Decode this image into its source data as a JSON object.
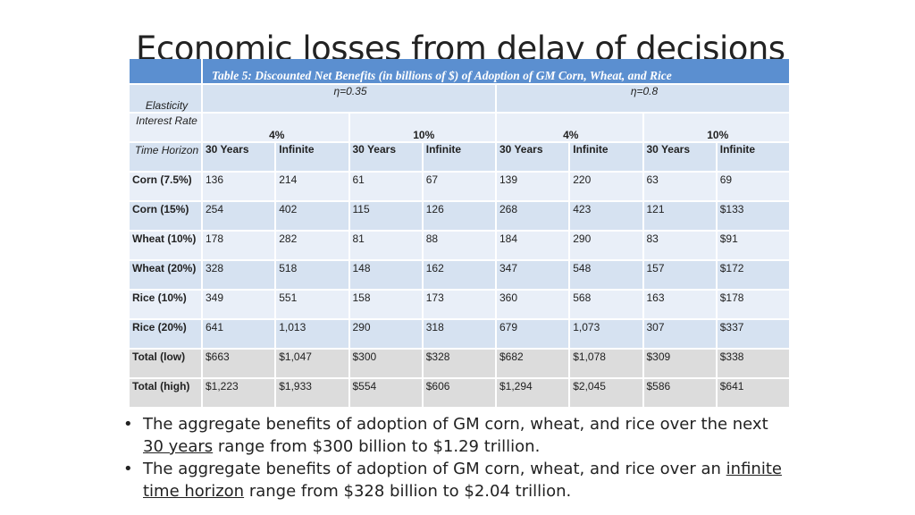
{
  "title": "Economic losses from delay of decisions",
  "table": {
    "caption": "Table 5: Discounted  Net Benefits (in billions of $) of Adoption of GM Corn, Wheat, and Rice",
    "elasticity_label": "Elasticity",
    "elasticity_values": [
      "η=0.35",
      "η=0.8"
    ],
    "interest_label": "Interest Rate",
    "interest_values": [
      "4%",
      "10%",
      "4%",
      "10%"
    ],
    "horizon_label": "Time Horizon",
    "horizon_values": [
      "30 Years",
      "Infinite",
      "30 Years",
      "Infinite",
      "30 Years",
      "Infinite",
      "30 Years",
      "Infinite"
    ],
    "rows": [
      {
        "label": "Corn (7.5%)",
        "cells": [
          "136",
          "214",
          "61",
          "67",
          "139",
          "220",
          "63",
          "69"
        ]
      },
      {
        "label": "Corn (15%)",
        "cells": [
          "254",
          "402",
          "115",
          "126",
          "268",
          "423",
          "121",
          "$133"
        ]
      },
      {
        "label": "Wheat (10%)",
        "cells": [
          "178",
          "282",
          "81",
          "88",
          "184",
          "290",
          "83",
          "$91"
        ]
      },
      {
        "label": "Wheat (20%)",
        "cells": [
          "328",
          "518",
          "148",
          "162",
          "347",
          "548",
          "157",
          "$172"
        ]
      },
      {
        "label": "Rice (10%)",
        "cells": [
          "349",
          "551",
          "158",
          "173",
          "360",
          "568",
          "163",
          "$178"
        ]
      },
      {
        "label": "Rice (20%)",
        "cells": [
          "641",
          "1,013",
          "290",
          "318",
          "679",
          "1,073",
          "307",
          "$337"
        ]
      },
      {
        "label": "Total (low)",
        "cells": [
          "$663",
          "$1,047",
          "$300",
          "$328",
          "$682",
          "$1,078",
          "$309",
          "$338"
        ]
      },
      {
        "label": "Total (high)",
        "cells": [
          "$1,223",
          "$1,933",
          "$554",
          "$606",
          "$1,294",
          "$2,045",
          "$586",
          "$641"
        ]
      }
    ]
  },
  "bullets": [
    {
      "pre": "The aggregate benefits of adoption of GM corn, wheat, and rice over the next ",
      "u": "30 years",
      "post": " range from $300 billion to $1.29 trillion."
    },
    {
      "pre": "The aggregate benefits of adoption of GM corn, wheat, and rice over an ",
      "u": "infinite time horizon",
      "post": " range from $328 billion to $2.04 trillion."
    }
  ],
  "colors": {
    "caption_bg": "#5b8fd0",
    "band_dark": "#d6e2f1",
    "band_light": "#e9eff8",
    "total_bg": "#dcdcdc"
  }
}
